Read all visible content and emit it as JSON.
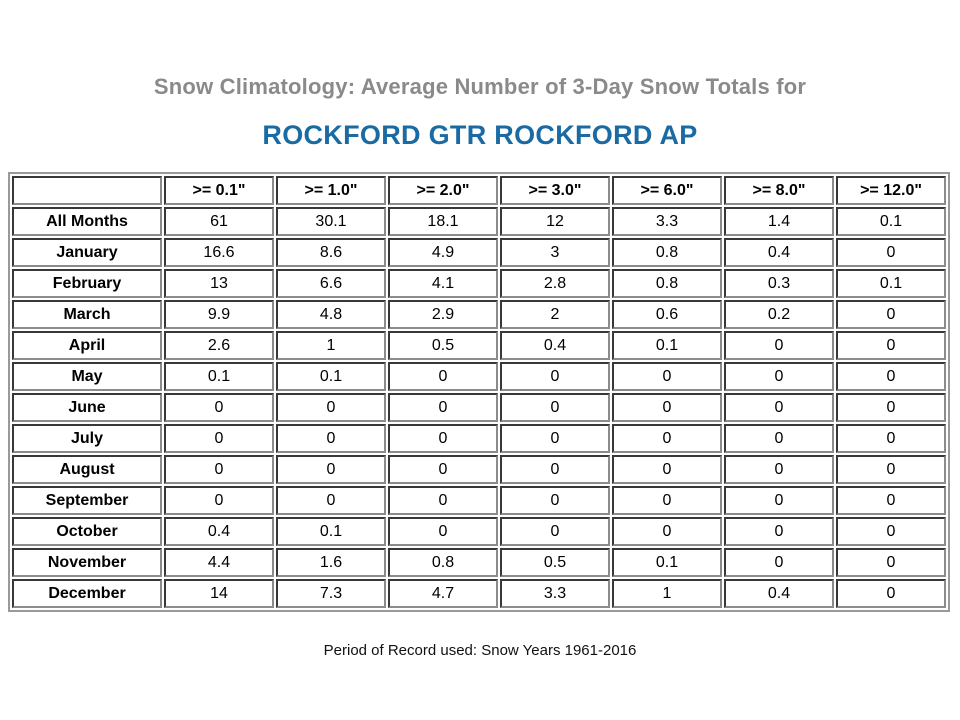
{
  "page": {
    "subtitle": "Snow Climatology: Average Number of 3-Day Snow Totals for",
    "title": "ROCKFORD GTR ROCKFORD AP",
    "footer": "Period of Record used: Snow Years 1961-2016",
    "colors": {
      "subtitle_gray": "#8a8a8a",
      "title_blue": "#1a6ba3",
      "table_border_gray": "#9a9a9a",
      "text_black": "#000000"
    }
  },
  "chart_data": {
    "type": "table",
    "title": "Snow Climatology: Average Number of 3-Day Snow Totals for ROCKFORD GTR ROCKFORD AP",
    "columns": [
      "",
      ">= 0.1\"",
      ">= 1.0\"",
      ">= 2.0\"",
      ">= 3.0\"",
      ">= 6.0\"",
      ">= 8.0\"",
      ">= 12.0\""
    ],
    "rows": [
      {
        "label": "All Months",
        "values": [
          "61",
          "30.1",
          "18.1",
          "12",
          "3.3",
          "1.4",
          "0.1"
        ]
      },
      {
        "label": "January",
        "values": [
          "16.6",
          "8.6",
          "4.9",
          "3",
          "0.8",
          "0.4",
          "0"
        ]
      },
      {
        "label": "February",
        "values": [
          "13",
          "6.6",
          "4.1",
          "2.8",
          "0.8",
          "0.3",
          "0.1"
        ]
      },
      {
        "label": "March",
        "values": [
          "9.9",
          "4.8",
          "2.9",
          "2",
          "0.6",
          "0.2",
          "0"
        ]
      },
      {
        "label": "April",
        "values": [
          "2.6",
          "1",
          "0.5",
          "0.4",
          "0.1",
          "0",
          "0"
        ]
      },
      {
        "label": "May",
        "values": [
          "0.1",
          "0.1",
          "0",
          "0",
          "0",
          "0",
          "0"
        ]
      },
      {
        "label": "June",
        "values": [
          "0",
          "0",
          "0",
          "0",
          "0",
          "0",
          "0"
        ]
      },
      {
        "label": "July",
        "values": [
          "0",
          "0",
          "0",
          "0",
          "0",
          "0",
          "0"
        ]
      },
      {
        "label": "August",
        "values": [
          "0",
          "0",
          "0",
          "0",
          "0",
          "0",
          "0"
        ]
      },
      {
        "label": "September",
        "values": [
          "0",
          "0",
          "0",
          "0",
          "0",
          "0",
          "0"
        ]
      },
      {
        "label": "October",
        "values": [
          "0.4",
          "0.1",
          "0",
          "0",
          "0",
          "0",
          "0"
        ]
      },
      {
        "label": "November",
        "values": [
          "4.4",
          "1.6",
          "0.8",
          "0.5",
          "0.1",
          "0",
          "0"
        ]
      },
      {
        "label": "December",
        "values": [
          "14",
          "7.3",
          "4.7",
          "3.3",
          "1",
          "0.4",
          "0"
        ]
      }
    ],
    "footer": "Period of Record used: Snow Years 1961-2016"
  }
}
